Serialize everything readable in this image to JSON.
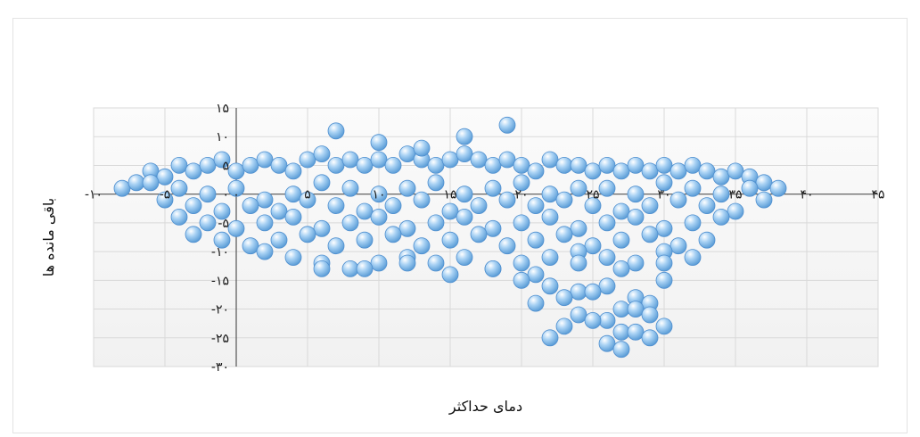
{
  "chart_data": {
    "type": "scatter",
    "title": "",
    "xlabel": "دمای حداکثر",
    "ylabel": "باقی مانده ها",
    "xlim": [
      -10,
      45
    ],
    "ylim": [
      -30,
      15
    ],
    "x_ticks": [
      -10,
      -5,
      0,
      5,
      10,
      15,
      20,
      25,
      30,
      35,
      40,
      45
    ],
    "x_tick_labels": [
      "-۱۰",
      "-۵",
      "۰",
      "۵",
      "۱۰",
      "۱۵",
      "۲۰",
      "۲۵",
      "۳۰",
      "۳۵",
      "۴۰",
      "۴۵"
    ],
    "y_ticks": [
      -30,
      -25,
      -20,
      -15,
      -10,
      -5,
      0,
      5,
      10,
      15
    ],
    "y_tick_labels": [
      "-۳۰",
      "-۲۵",
      "-۲۰",
      "-۱۵",
      "-۱۰",
      "-۵",
      "۰",
      "۵",
      "۱۰",
      "۱۵"
    ],
    "grid": true,
    "legend": "none",
    "marker_color": "#8fc1ec",
    "marker_edge_color": "#4f8fcf",
    "series": [
      {
        "points_note": "dense cloud, sampled",
        "x": [
          -8,
          -7,
          -6,
          -5,
          -4,
          -3,
          -2,
          -1,
          0,
          1,
          2,
          3,
          4,
          5,
          6,
          7,
          8,
          9,
          10,
          11,
          12,
          13,
          14,
          15,
          16,
          17,
          18,
          19,
          20,
          21,
          22,
          23,
          24,
          25,
          26,
          27,
          28,
          29,
          30,
          31,
          32,
          33,
          34,
          35,
          36,
          37,
          38,
          -6,
          -4,
          -2,
          0,
          2,
          4,
          6,
          8,
          10,
          12,
          14,
          16,
          18,
          20,
          22,
          24,
          26,
          28,
          30,
          32,
          34,
          36,
          -5,
          -3,
          -1,
          1,
          3,
          5,
          7,
          9,
          11,
          13,
          15,
          17,
          19,
          21,
          23,
          25,
          27,
          29,
          31,
          33,
          35,
          37,
          -4,
          -2,
          0,
          2,
          4,
          6,
          8,
          10,
          12,
          14,
          16,
          18,
          20,
          22,
          24,
          26,
          28,
          30,
          32,
          34,
          -3,
          -1,
          1,
          3,
          5,
          7,
          9,
          11,
          13,
          15,
          17,
          19,
          21,
          23,
          25,
          27,
          29,
          31,
          33,
          2,
          4,
          6,
          8,
          10,
          12,
          14,
          16,
          18,
          20,
          22,
          24,
          26,
          28,
          30,
          32,
          6,
          9,
          12,
          15,
          18,
          21,
          24,
          27,
          30,
          20,
          22,
          24,
          26,
          28,
          30,
          21,
          23,
          25,
          27,
          29,
          24,
          26,
          28,
          23,
          25,
          27,
          29,
          22,
          26,
          28,
          30,
          27,
          29,
          7,
          16,
          10,
          13,
          19
        ],
        "y": [
          1,
          2,
          4,
          3,
          5,
          4,
          5,
          6,
          4,
          5,
          6,
          5,
          4,
          6,
          7,
          5,
          6,
          5,
          6,
          5,
          7,
          6,
          5,
          6,
          7,
          6,
          5,
          6,
          5,
          4,
          6,
          5,
          5,
          4,
          5,
          4,
          5,
          4,
          5,
          4,
          5,
          4,
          3,
          4,
          3,
          2,
          1,
          2,
          1,
          0,
          1,
          -1,
          0,
          2,
          1,
          0,
          1,
          2,
          0,
          1,
          2,
          0,
          1,
          1,
          0,
          2,
          1,
          0,
          1,
          -1,
          -2,
          -3,
          -2,
          -3,
          -1,
          -2,
          -3,
          -2,
          -1,
          -3,
          -2,
          -1,
          -2,
          -1,
          -2,
          -3,
          -2,
          -1,
          -2,
          -3,
          -1,
          -4,
          -5,
          -6,
          -5,
          -4,
          -6,
          -5,
          -4,
          -6,
          -5,
          -4,
          -6,
          -5,
          -4,
          -6,
          -5,
          -4,
          -6,
          -5,
          -4,
          -7,
          -8,
          -9,
          -8,
          -7,
          -9,
          -8,
          -7,
          -9,
          -8,
          -7,
          -9,
          -8,
          -7,
          -9,
          -8,
          -7,
          -9,
          -8,
          -10,
          -11,
          -12,
          -13,
          -12,
          -11,
          -12,
          -11,
          -13,
          -12,
          -11,
          -10,
          -11,
          -12,
          -10,
          -11,
          -13,
          -13,
          -12,
          -14,
          -13,
          -14,
          -12,
          -13,
          -12,
          -15,
          -16,
          -17,
          -16,
          -18,
          -15,
          -19,
          -18,
          -17,
          -20,
          -19,
          -21,
          -22,
          -20,
          -23,
          -22,
          -24,
          -21,
          -25,
          -26,
          -24,
          -23,
          -27,
          -25,
          11,
          10,
          9,
          8,
          12
        ]
      }
    ]
  }
}
